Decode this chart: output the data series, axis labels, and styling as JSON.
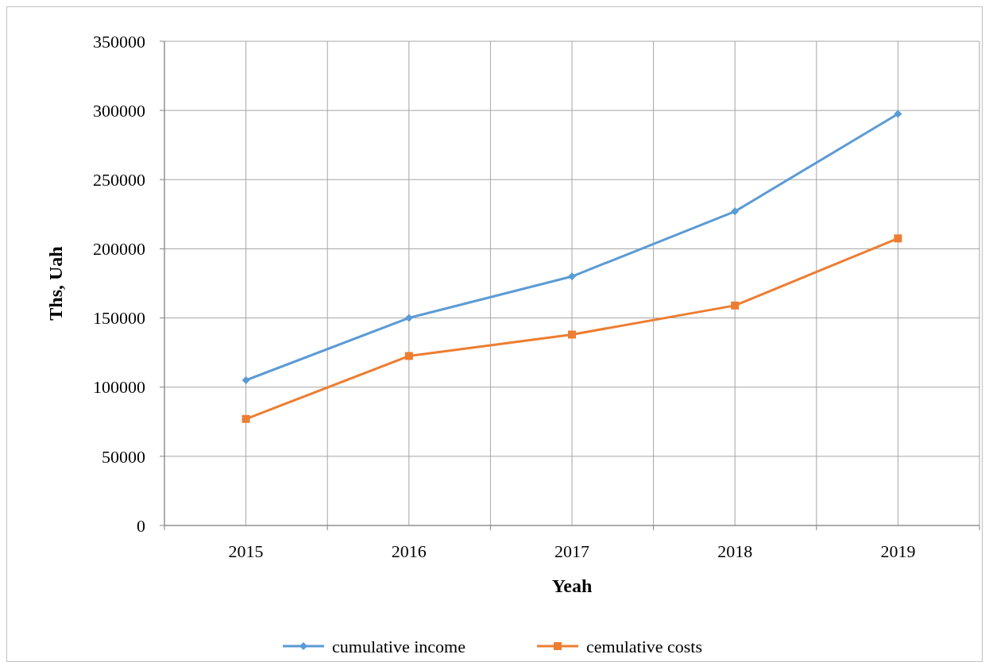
{
  "chart_data": {
    "type": "line",
    "xlabel": "Yeah",
    "ylabel": "Ths, Uah",
    "categories": [
      "2015",
      "2016",
      "2017",
      "2018",
      "2019"
    ],
    "series": [
      {
        "name": "cumulative income",
        "color": "#5b9bd5",
        "marker": "diamond",
        "values": [
          105000,
          150000,
          180000,
          227000,
          297500
        ]
      },
      {
        "name": "cemulative costs",
        "color": "#ed7d31",
        "marker": "square",
        "values": [
          77000,
          122500,
          138000,
          159000,
          207500
        ]
      }
    ],
    "ylim": [
      0,
      350000
    ],
    "yticks": [
      0,
      50000,
      100000,
      150000,
      200000,
      250000,
      300000,
      350000
    ],
    "grid": true,
    "legend": "bottom",
    "line_style": "solid"
  }
}
